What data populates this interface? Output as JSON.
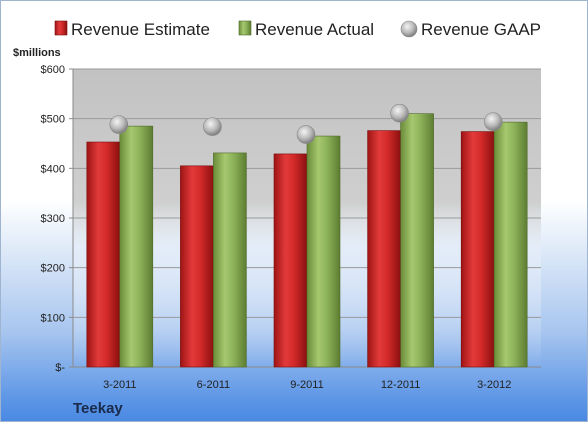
{
  "company": "Teekay",
  "chart_data": {
    "type": "bar",
    "categories": [
      "3-2011",
      "6-2011",
      "9-2011",
      "12-2011",
      "3-2012"
    ],
    "series": [
      {
        "name": "Revenue Estimate",
        "type": "bar",
        "color": "#d42a2a",
        "values": [
          453,
          405,
          429,
          476,
          474
        ]
      },
      {
        "name": "Revenue Actual",
        "type": "bar",
        "color": "#8db35a",
        "values": [
          485,
          431,
          465,
          510,
          493
        ]
      },
      {
        "name": "Revenue GAAP",
        "type": "marker",
        "color": "#b8b8b8",
        "values": [
          488,
          484,
          468,
          511,
          494
        ]
      }
    ],
    "ylabel": "$millions",
    "ylim": [
      0,
      600
    ],
    "yticks": [
      0,
      100,
      200,
      300,
      400,
      500,
      600
    ],
    "ytick_labels": [
      "$-",
      "$100",
      "$200",
      "$300",
      "$400",
      "$500",
      "$600"
    ],
    "grid": true,
    "legend_position": "top"
  }
}
